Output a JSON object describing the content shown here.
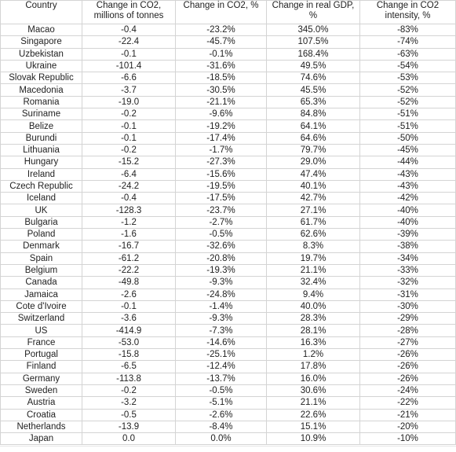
{
  "table": {
    "headers": [
      "Country",
      "Change in CO2, millions of tonnes",
      "Change in CO2, %",
      "Change in real GDP, %",
      "Change in CO2 intensity, %"
    ],
    "rows": [
      [
        "Macao",
        "-0.4",
        "-23.2%",
        "345.0%",
        "-83%"
      ],
      [
        "Singapore",
        "-22.4",
        "-45.7%",
        "107.5%",
        "-74%"
      ],
      [
        "Uzbekistan",
        "-0.1",
        "-0.1%",
        "168.4%",
        "-63%"
      ],
      [
        "Ukraine",
        "-101.4",
        "-31.6%",
        "49.5%",
        "-54%"
      ],
      [
        "Slovak Republic",
        "-6.6",
        "-18.5%",
        "74.6%",
        "-53%"
      ],
      [
        "Macedonia",
        "-3.7",
        "-30.5%",
        "45.5%",
        "-52%"
      ],
      [
        "Romania",
        "-19.0",
        "-21.1%",
        "65.3%",
        "-52%"
      ],
      [
        "Suriname",
        "-0.2",
        "-9.6%",
        "84.8%",
        "-51%"
      ],
      [
        "Belize",
        "-0.1",
        "-19.2%",
        "64.1%",
        "-51%"
      ],
      [
        "Burundi",
        "-0.1",
        "-17.4%",
        "64.6%",
        "-50%"
      ],
      [
        "Lithuania",
        "-0.2",
        "-1.7%",
        "79.7%",
        "-45%"
      ],
      [
        "Hungary",
        "-15.2",
        "-27.3%",
        "29.0%",
        "-44%"
      ],
      [
        "Ireland",
        "-6.4",
        "-15.6%",
        "47.4%",
        "-43%"
      ],
      [
        "Czech Republic",
        "-24.2",
        "-19.5%",
        "40.1%",
        "-43%"
      ],
      [
        "Iceland",
        "-0.4",
        "-17.5%",
        "42.7%",
        "-42%"
      ],
      [
        "UK",
        "-128.3",
        "-23.7%",
        "27.1%",
        "-40%"
      ],
      [
        "Bulgaria",
        "-1.2",
        "-2.7%",
        "61.7%",
        "-40%"
      ],
      [
        "Poland",
        "-1.6",
        "-0.5%",
        "62.6%",
        "-39%"
      ],
      [
        "Denmark",
        "-16.7",
        "-32.6%",
        "8.3%",
        "-38%"
      ],
      [
        "Spain",
        "-61.2",
        "-20.8%",
        "19.7%",
        "-34%"
      ],
      [
        "Belgium",
        "-22.2",
        "-19.3%",
        "21.1%",
        "-33%"
      ],
      [
        "Canada",
        "-49.8",
        "-9.3%",
        "32.4%",
        "-32%"
      ],
      [
        "Jamaica",
        "-2.6",
        "-24.8%",
        "9.4%",
        "-31%"
      ],
      [
        "Cote d'Ivoire",
        "-0.1",
        "-1.4%",
        "40.0%",
        "-30%"
      ],
      [
        "Switzerland",
        "-3.6",
        "-9.3%",
        "28.3%",
        "-29%"
      ],
      [
        "US",
        "-414.9",
        "-7.3%",
        "28.1%",
        "-28%"
      ],
      [
        "France",
        "-53.0",
        "-14.6%",
        "16.3%",
        "-27%"
      ],
      [
        "Portugal",
        "-15.8",
        "-25.1%",
        "1.2%",
        "-26%"
      ],
      [
        "Finland",
        "-6.5",
        "-12.4%",
        "17.8%",
        "-26%"
      ],
      [
        "Germany",
        "-113.8",
        "-13.7%",
        "16.0%",
        "-26%"
      ],
      [
        "Sweden",
        "-0.2",
        "-0.5%",
        "30.6%",
        "-24%"
      ],
      [
        "Austria",
        "-3.2",
        "-5.1%",
        "21.1%",
        "-22%"
      ],
      [
        "Croatia",
        "-0.5",
        "-2.6%",
        "22.6%",
        "-21%"
      ],
      [
        "Netherlands",
        "-13.9",
        "-8.4%",
        "15.1%",
        "-20%"
      ],
      [
        "Japan",
        "0.0",
        "0.0%",
        "10.9%",
        "-10%"
      ]
    ]
  }
}
